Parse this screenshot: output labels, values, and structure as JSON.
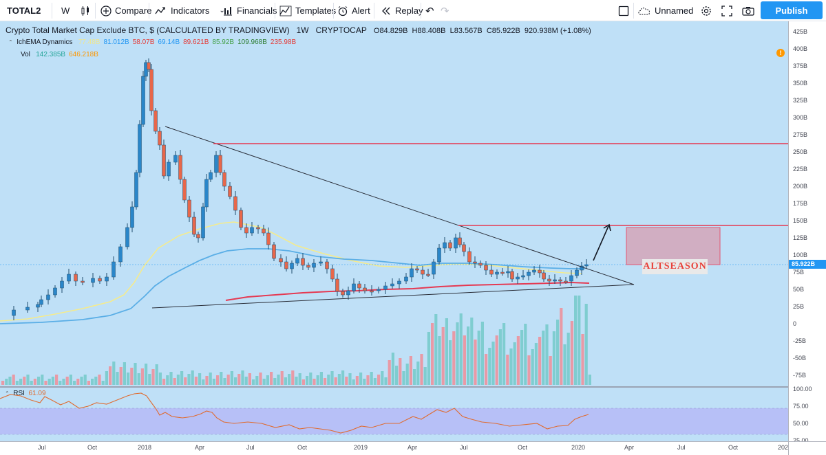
{
  "toolbar": {
    "symbol": "TOTAL2",
    "interval": "W",
    "compare": "Compare",
    "indicators": "Indicators",
    "financials": "Financials",
    "templates": "Templates",
    "alert": "Alert",
    "replay": "Replay",
    "layout_name": "Unnamed",
    "publish": "Publish"
  },
  "legend": {
    "title": "Crypto Total Market Cap Exclude BTC, $ (CALCULATED BY TRADINGVIEW)",
    "interval": "1W",
    "exchange": "CRYPTOCAP",
    "ohlc": {
      "o_label": "O",
      "o": "84.829B",
      "h_label": "H",
      "h": "88.408B",
      "l_label": "L",
      "l": "83.567B",
      "c_label": "C",
      "c": "85.922B",
      "change": "920.938M (+1.08%)"
    },
    "indicator_name": "IchEMA Dynamics",
    "indicator_values": [
      "77.48B",
      "81.012B",
      "58.07B",
      "69.14B",
      "89.621B",
      "85.92B",
      "109.968B",
      "235.98B"
    ],
    "indicator_colors": [
      "#f0e68c",
      "#2196f3",
      "#e53935",
      "#2196f3",
      "#e53935",
      "#43a047",
      "#2e7d32",
      "#e53935"
    ],
    "vol_label": "Vol",
    "vol_values": [
      "142.385B",
      "646.218B"
    ],
    "vol_colors": [
      "#26a69a",
      "#ff9800"
    ],
    "rsi_label": "RSI",
    "rsi_value": "61.09"
  },
  "annotation": {
    "altseason": "ALTSEASON"
  },
  "price_axis": {
    "current_price": "85.922B",
    "ticks": [
      "425B",
      "400B",
      "375B",
      "350B",
      "325B",
      "300B",
      "275B",
      "250B",
      "225B",
      "200B",
      "175B",
      "150B",
      "125B",
      "100B",
      "75B",
      "50B",
      "25B",
      "0",
      "-25B",
      "-50B",
      "-75B"
    ]
  },
  "rsi_axis": {
    "ticks": [
      "100.00",
      "75.00",
      "50.00",
      "25.00"
    ]
  },
  "time_axis": {
    "ticks": [
      "Jul",
      "Oct",
      "2018",
      "Apr",
      "Jul",
      "Oct",
      "2019",
      "Apr",
      "Jul",
      "Oct",
      "2020",
      "Apr",
      "Jul",
      "Oct",
      "202"
    ]
  },
  "colors": {
    "background": "#bfe0f7",
    "up": "#26a69a",
    "down": "#ef5350",
    "ema_yellow": "#f5eb8c",
    "ema_blue": "#5aaee6",
    "ema_red": "#e53952",
    "rsi_line": "#e06b2f",
    "rsi_band": "#b7c0f7",
    "accent": "#2196f3"
  }
}
